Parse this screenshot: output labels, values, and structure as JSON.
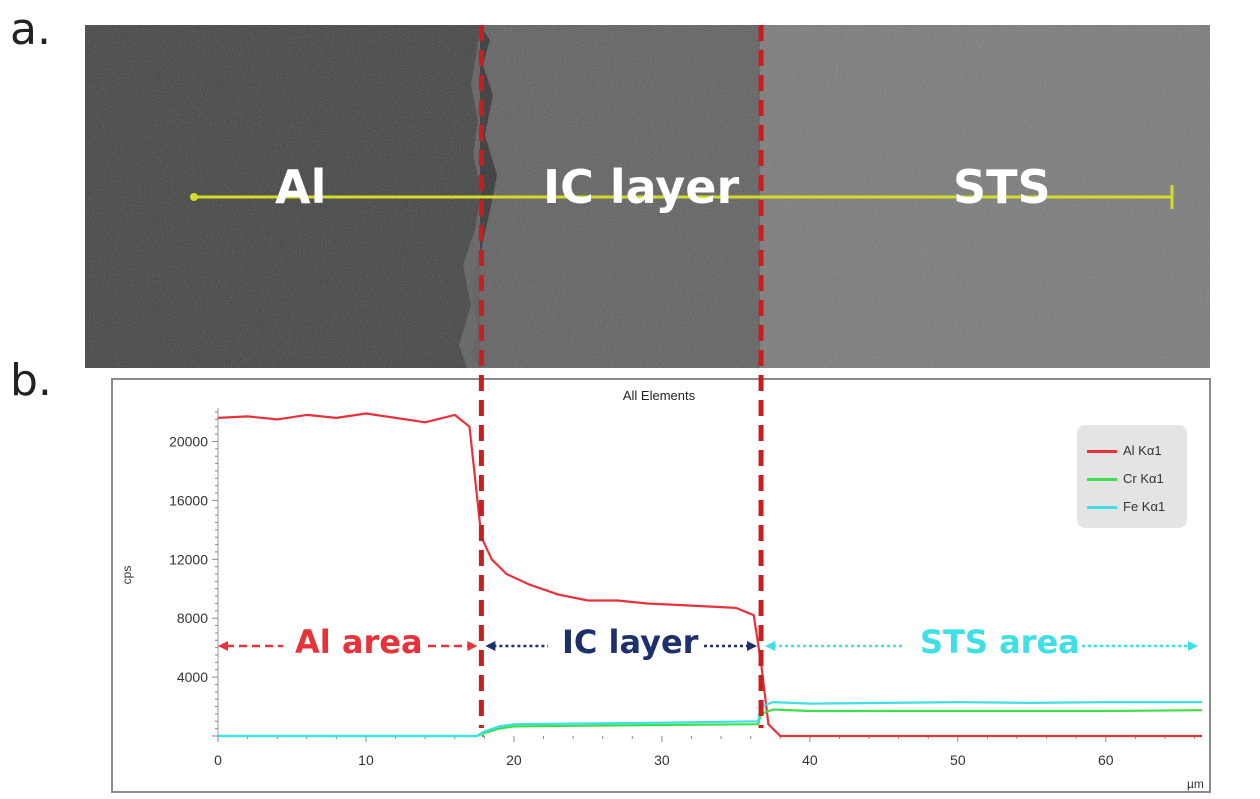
{
  "panels": {
    "a": "a.",
    "b": "b."
  },
  "sem": {
    "regions": [
      "Al",
      "IC layer",
      "STS"
    ]
  },
  "colors": {
    "boundary": "#c81e1e",
    "scanline": "#d4dc2a",
    "al": "#e8323a",
    "cr": "#3ee04a",
    "fe": "#3ee0e6",
    "ic_text": "#1e2f6e",
    "sts_text": "#3ee0e6",
    "al_text": "#e8323a"
  },
  "annotations": {
    "al_area": "Al area",
    "ic_layer": "IC layer",
    "sts_area": "STS area"
  },
  "chart_data": {
    "type": "line",
    "title": "All Elements",
    "xlabel": "µm",
    "ylabel": "cps",
    "xlim": [
      0,
      66.5
    ],
    "ylim": [
      0,
      22000
    ],
    "x_ticks": [
      0,
      10,
      20,
      30,
      40,
      50,
      60
    ],
    "y_ticks": [
      4000,
      8000,
      12000,
      16000,
      20000
    ],
    "legend_position": "top-right",
    "boundaries_um": [
      17.8,
      36.7
    ],
    "series": [
      {
        "name": "Al Kα1",
        "color": "#e8323a",
        "x": [
          0,
          2,
          4,
          6,
          8,
          10,
          12,
          14,
          16,
          17,
          17.8,
          18.5,
          19.5,
          21,
          23,
          25,
          27,
          29,
          31,
          33,
          35,
          36.2,
          36.7,
          37.2,
          38,
          40,
          50,
          60,
          66.5
        ],
        "y": [
          21600,
          21700,
          21500,
          21800,
          21600,
          21900,
          21600,
          21300,
          21800,
          21000,
          13500,
          12000,
          11000,
          10300,
          9600,
          9200,
          9200,
          9000,
          8900,
          8800,
          8700,
          8200,
          5000,
          800,
          0,
          0,
          0,
          0,
          0
        ]
      },
      {
        "name": "Cr Kα1",
        "color": "#3ee04a",
        "x": [
          0,
          17.5,
          18,
          19,
          20,
          25,
          30,
          36.5,
          36.7,
          37.5,
          40,
          45,
          50,
          55,
          60,
          66.5
        ],
        "y": [
          0,
          0,
          200,
          500,
          650,
          700,
          750,
          800,
          1500,
          1800,
          1700,
          1700,
          1700,
          1700,
          1700,
          1750
        ]
      },
      {
        "name": "Fe Kα1",
        "color": "#3ee0e6",
        "x": [
          0,
          17.5,
          18,
          19,
          20,
          25,
          30,
          36.5,
          36.7,
          37.5,
          40,
          45,
          50,
          55,
          60,
          66.5
        ],
        "y": [
          0,
          0,
          300,
          650,
          800,
          850,
          900,
          1000,
          2000,
          2300,
          2200,
          2250,
          2300,
          2250,
          2300,
          2300
        ]
      }
    ]
  }
}
